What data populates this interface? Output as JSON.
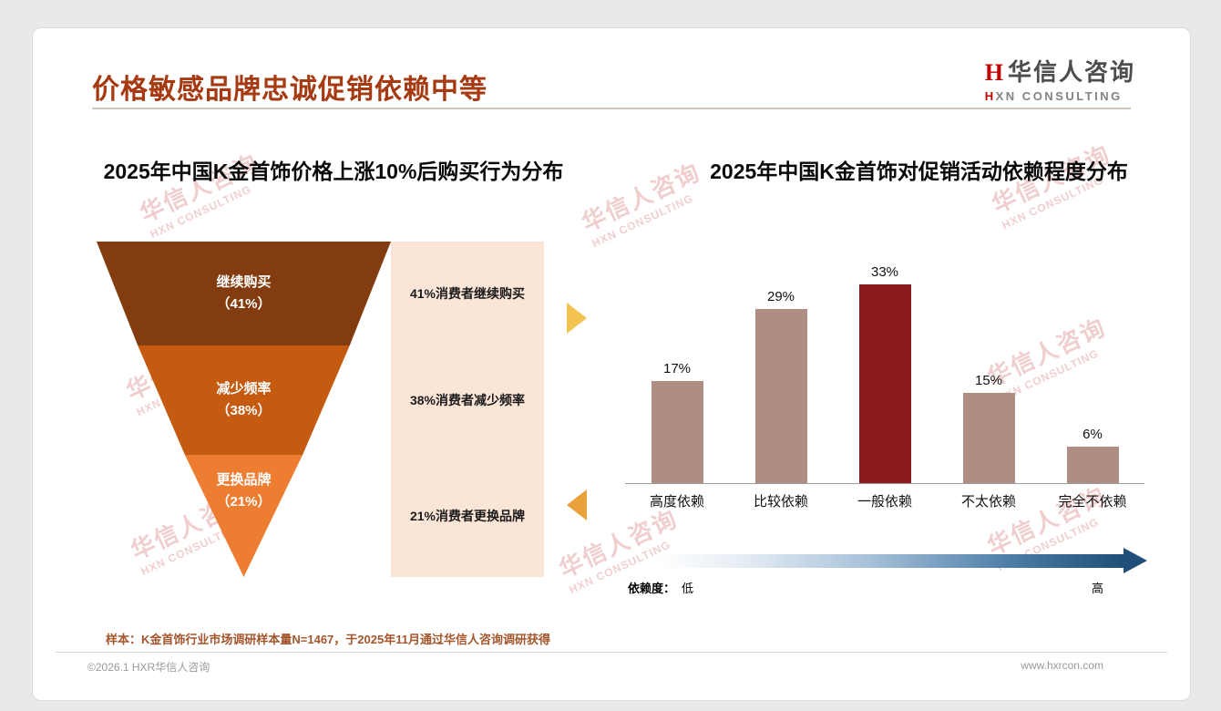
{
  "page": {
    "title": "价格敏感品牌忠诚促销依赖中等",
    "sample_note": "样本：K金首饰行业市场调研样本量N=1467，于2025年11月通过华信人咨询调研获得",
    "footer_left": "©2026.1 HXR华信人咨询",
    "footer_right": "www.hxrcon.com"
  },
  "logo": {
    "mark": "H",
    "cn": "华信人咨询",
    "en_accent": "H",
    "en_rest": "XN CONSULTING"
  },
  "watermark": {
    "cn": "华信人咨询",
    "en": "HXN CONSULTING"
  },
  "colors": {
    "title_accent": "#A63A13",
    "logo_accent": "#C00000",
    "bar_default": "#AE8D83",
    "bar_highlight": "#8B1A1C",
    "annotation_bg": "#FBE5D6",
    "axis_gradient_start": "#FFFFFF",
    "axis_gradient_end": "#1F4E79"
  },
  "chart_data": [
    {
      "type": "funnel",
      "title": "2025年中国K金首饰价格上涨10%后购买行为分布",
      "annotation_bg": "#FBE5D6",
      "segments": [
        {
          "label": "继续购买",
          "value_label": "（41%）",
          "pct": 41,
          "color": "#833C0F",
          "annotation": "41%消费者继续购买"
        },
        {
          "label": "减少频率",
          "value_label": "（38%）",
          "pct": 38,
          "color": "#C55A11",
          "annotation": "38%消费者减少频率"
        },
        {
          "label": "更换品牌",
          "value_label": "（21%）",
          "pct": 21,
          "color": "#ED7D31",
          "annotation": "21%消费者更换品牌"
        }
      ]
    },
    {
      "type": "bar",
      "title": "2025年中国K金首饰对促销活动依赖程度分布",
      "categories": [
        "高度依赖",
        "比较依赖",
        "一般依赖",
        "不太依赖",
        "完全不依赖"
      ],
      "values": [
        17,
        29,
        33,
        15,
        6
      ],
      "value_labels": [
        "17%",
        "29%",
        "33%",
        "15%",
        "6%"
      ],
      "bar_colors": [
        "#AE8D83",
        "#AE8D83",
        "#8B1A1C",
        "#AE8D83",
        "#AE8D83"
      ],
      "highlight_index": 2,
      "ylim": [
        0,
        35
      ],
      "grid": false,
      "legend": "none",
      "axis_note": {
        "label": "依赖度：",
        "low": "低",
        "high": "高"
      }
    }
  ]
}
